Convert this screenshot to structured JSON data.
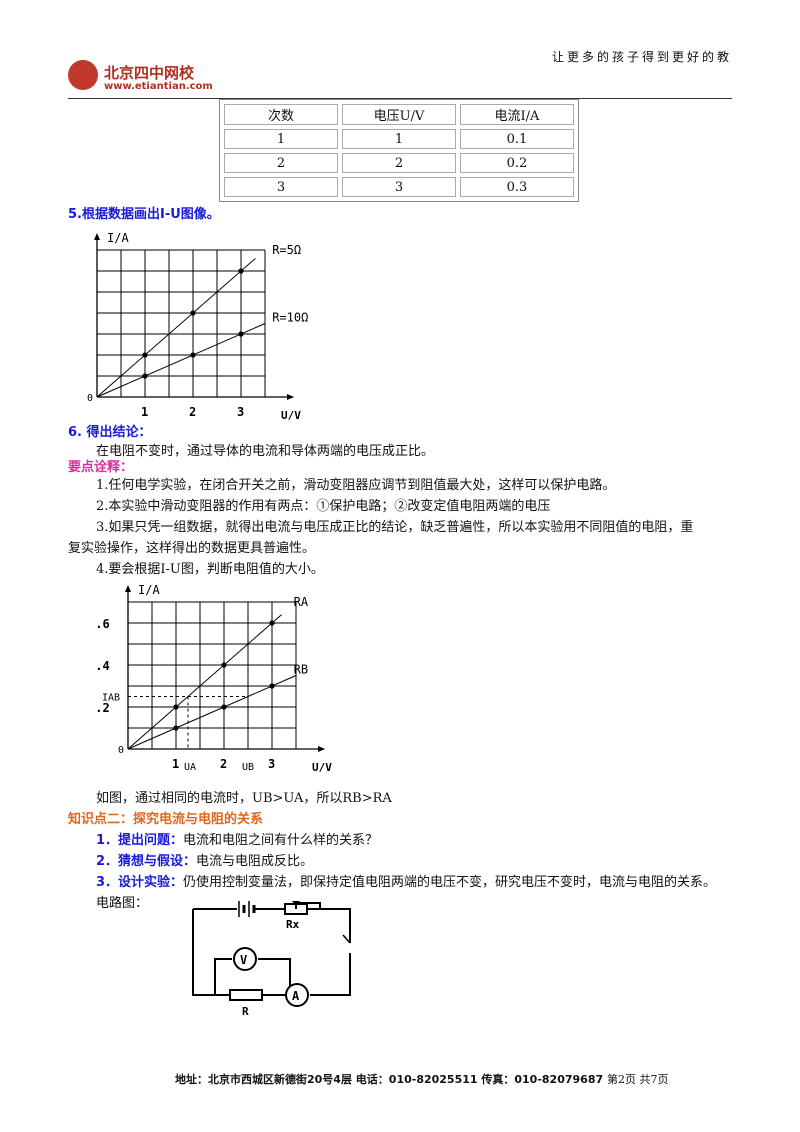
{
  "header": {
    "logo_text": "北京四中网校",
    "logo_url": "www.etiantian.com",
    "slogan": "让更多的孩子得到更好的教"
  },
  "table": {
    "headers": [
      "次数",
      "电压U/V",
      "电流I/A"
    ],
    "rows": [
      [
        "1",
        "1",
        "0.1"
      ],
      [
        "2",
        "2",
        "0.2"
      ],
      [
        "3",
        "3",
        "0.3"
      ]
    ]
  },
  "step5": "5.根据数据画出I-U图像。",
  "chart_data": [
    {
      "type": "line",
      "xlabel": "U/V",
      "ylabel": "I/A",
      "x_ticks": [
        "1",
        "2",
        "3"
      ],
      "y_ticks": [
        "0.2",
        "0.4",
        "0.6"
      ],
      "origin_label": "0",
      "grid": true,
      "series": [
        {
          "name": "R=5Ω",
          "x": [
            1,
            2,
            3
          ],
          "y": [
            0.2,
            0.4,
            0.6
          ]
        },
        {
          "name": "R=10Ω",
          "x": [
            1,
            2,
            3
          ],
          "y": [
            0.1,
            0.2,
            0.3
          ]
        }
      ]
    },
    {
      "type": "line",
      "xlabel": "U/V",
      "ylabel": "I/A",
      "x_ticks": [
        "1",
        "2",
        "3"
      ],
      "y_ticks": [
        "0.2",
        "0.4",
        "0.6"
      ],
      "origin_label": "0",
      "grid": true,
      "extra_labels": {
        "iab": "IAB",
        "ua": "UA",
        "ub": "UB"
      },
      "series": [
        {
          "name": "RA",
          "x": [
            1,
            2,
            3
          ],
          "y": [
            0.2,
            0.4,
            0.6
          ]
        },
        {
          "name": "RB",
          "x": [
            1,
            2,
            3
          ],
          "y": [
            0.1,
            0.2,
            0.3
          ]
        }
      ]
    }
  ],
  "step6_title": "6. 得出结论：",
  "step6_text": "在电阻不变时，通过导体的电流和导体两端的电压成正比。",
  "key_title": "要点诠释：",
  "key_points": [
    "1.任何电学实验，在闭合开关之前，滑动变阻器应调节到阻值最大处，这样可以保护电路。",
    "2.本实验中滑动变阻器的作用有两点：①保护电路；②改变定值电阻两端的电压",
    "3.如果只凭一组数据，就得出电流与电压成正比的结论，缺乏普遍性，所以本实验用不同阻值的电阻，重",
    "复实验操作，这样得出的数据更具普遍性。",
    "4.要会根据I-U图，判断电阻值的大小。"
  ],
  "graph2_caption": "如图，通过相同的电流时，UB>UA，所以RB>RA",
  "section2_title": "知识点二：探究电流与电阻的关系",
  "s2_items": [
    {
      "label": "1．提出问题：",
      "text": "电流和电阻之间有什么样的关系？"
    },
    {
      "label": "2．猜想与假设：",
      "text": "电流与电阻成反比。"
    },
    {
      "label": "3．设计实验：",
      "text": "仍使用控制变量法，即保持定值电阻两端的电压不变，研究电压不变时，电流与电阻的关系。"
    }
  ],
  "circuit_label": "电路图：",
  "circuit": {
    "rx": "Rx",
    "v": "V",
    "a": "A",
    "r": "R"
  },
  "footer": {
    "address": "地址：北京市西城区新德街20号4层  电话：010-82025511  传真：010-82079687",
    "page": "第2页 共7页"
  }
}
